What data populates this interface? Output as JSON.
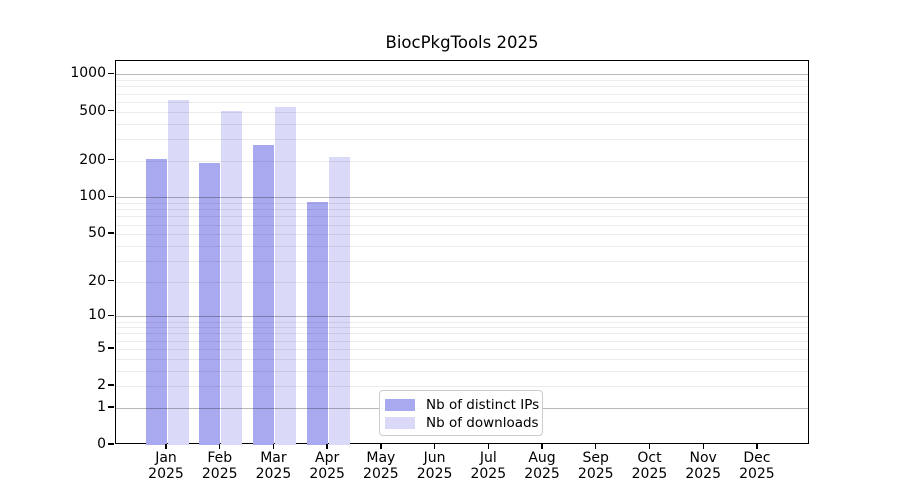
{
  "chart_data": {
    "type": "bar",
    "title": "BiocPkgTools 2025",
    "xlabel": "",
    "ylabel": "",
    "yscale": "log1p",
    "ylim": [
      0,
      1290
    ],
    "yticks": [
      0,
      1,
      2,
      5,
      10,
      20,
      50,
      100,
      200,
      500,
      1000
    ],
    "grid": {
      "major_gridline_values": [
        1,
        10,
        100,
        1000
      ],
      "minor_gridline_mantissas": [
        2,
        3,
        4,
        5,
        6,
        7,
        8,
        9
      ],
      "minor_gridline_decades": [
        1,
        10,
        100
      ]
    },
    "categories": [
      "Jan",
      "Feb",
      "Mar",
      "Apr",
      "May",
      "Jun",
      "Jul",
      "Aug",
      "Sep",
      "Oct",
      "Nov",
      "Dec"
    ],
    "category_year": "2025",
    "series": [
      {
        "name": "Nb of distinct IPs",
        "color": "#a9a9f0",
        "values": [
          207,
          190,
          266,
          91,
          0,
          0,
          0,
          0,
          0,
          0,
          0,
          0
        ]
      },
      {
        "name": "Nb of downloads",
        "color": "#dadaf8",
        "values": [
          620,
          508,
          545,
          214,
          0,
          0,
          0,
          0,
          0,
          0,
          0,
          0
        ]
      }
    ],
    "legend": {
      "position": "lower center",
      "entries": [
        "Nb of distinct IPs",
        "Nb of downloads"
      ]
    }
  }
}
